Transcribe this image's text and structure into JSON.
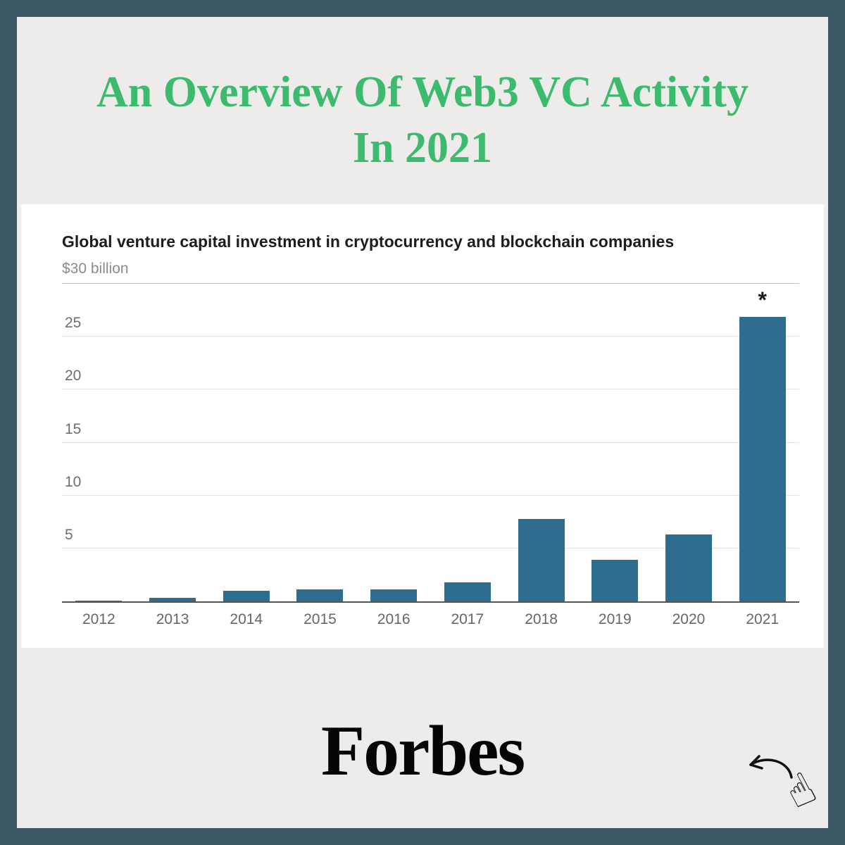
{
  "colors": {
    "frame": "#3b5a66",
    "background": "#edecea",
    "panel": "#ffffff",
    "title_green": "#3cbb6f",
    "bar": "#2e6d8e",
    "axis_text": "#6e6e6e"
  },
  "header": {
    "title_line1": "An Overview Of Web3 VC Activity",
    "title_line2": "In 2021"
  },
  "chart_data": {
    "type": "bar",
    "title": "Global venture capital investment in cryptocurrency and blockchain companies",
    "unit_label": "$30 billion",
    "categories": [
      "2012",
      "2013",
      "2014",
      "2015",
      "2016",
      "2017",
      "2018",
      "2019",
      "2020",
      "2021"
    ],
    "values": [
      0.1,
      0.35,
      1.0,
      1.1,
      1.1,
      1.8,
      7.8,
      3.9,
      6.3,
      26.9
    ],
    "annotations": [
      {
        "category": "2021",
        "text": "*"
      }
    ],
    "xlabel": "",
    "ylabel": "",
    "ylim": [
      0,
      30
    ],
    "yticks": [
      5,
      10,
      15,
      20,
      25
    ],
    "grid": true,
    "legend": false,
    "bar_color": "#2e6d8e"
  },
  "footer": {
    "brand": "Forbes"
  },
  "icons": {
    "click_hand_glyph": "☝",
    "click_icon_name": "click-hand-icon"
  }
}
